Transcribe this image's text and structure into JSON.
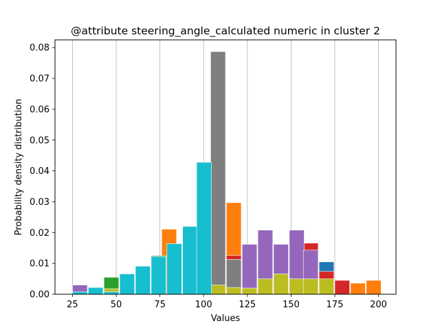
{
  "chart_data": {
    "type": "bar",
    "title": "@attribute steering_angle_calculated numeric in cluster  2",
    "xlabel": "Values",
    "ylabel": "Probability density distribution",
    "xlim": [
      15,
      210
    ],
    "ylim": [
      0,
      0.0825
    ],
    "xticks": [
      25,
      50,
      75,
      100,
      125,
      150,
      175,
      200
    ],
    "xtick_labels": [
      "25",
      "50",
      "75",
      "100",
      "125",
      "150",
      "175",
      "200"
    ],
    "yticks": [
      0,
      0.01,
      0.02,
      0.03,
      0.04,
      0.05,
      0.06,
      0.07,
      0.08
    ],
    "ytick_labels": [
      "0.00",
      "0.01",
      "0.02",
      "0.03",
      "0.04",
      "0.05",
      "0.06",
      "0.07",
      "0.08"
    ],
    "grid": "vertical",
    "colors": {
      "blue": "#1f77b4",
      "orange": "#ff7f0e",
      "green": "#2ca02c",
      "red": "#d62728",
      "purple": "#9467bd",
      "gray": "#7f7f7f",
      "olive": "#bcbd22",
      "cyan": "#17becf"
    },
    "series": [
      {
        "color": "#1f77b4",
        "bars": [
          [
            25,
            33.5,
            0.0012
          ],
          [
            166,
            174.5,
            0.0105
          ]
        ]
      },
      {
        "color": "#ff7f0e",
        "bars": [
          [
            76,
            84.5,
            0.0211
          ],
          [
            113,
            121.5,
            0.0297
          ],
          [
            184,
            192.5,
            0.0036
          ],
          [
            193,
            201.5,
            0.0045
          ]
        ]
      },
      {
        "color": "#2ca02c",
        "bars": [
          [
            43,
            51.5,
            0.0055
          ],
          [
            70,
            78.5,
            0.0125
          ]
        ]
      },
      {
        "color": "#d62728",
        "bars": [
          [
            113,
            121.5,
            0.0126
          ],
          [
            157,
            165.5,
            0.0166
          ],
          [
            166,
            174.5,
            0.0074
          ],
          [
            175,
            183.5,
            0.0045
          ]
        ]
      },
      {
        "color": "#9467bd",
        "bars": [
          [
            25,
            33.5,
            0.003
          ],
          [
            113,
            121.5,
            0.0113
          ],
          [
            122,
            130.5,
            0.0162
          ],
          [
            131,
            139.5,
            0.0208
          ],
          [
            140,
            148.5,
            0.0162
          ],
          [
            149,
            157.5,
            0.0208
          ],
          [
            157,
            165.5,
            0.0143
          ]
        ]
      },
      {
        "color": "#7f7f7f",
        "bars": [
          [
            104,
            112.5,
            0.0787
          ],
          [
            113,
            121.5,
            0.0113
          ]
        ]
      },
      {
        "color": "#bcbd22",
        "bars": [
          [
            43,
            51.5,
            0.0018
          ],
          [
            104,
            112.5,
            0.003
          ],
          [
            113,
            121.5,
            0.0022
          ],
          [
            122,
            130.5,
            0.002
          ],
          [
            131,
            139.5,
            0.005
          ],
          [
            140,
            148.5,
            0.0066
          ],
          [
            149,
            157.5,
            0.005
          ],
          [
            157,
            165.5,
            0.005
          ],
          [
            166,
            174.5,
            0.005
          ]
        ]
      },
      {
        "color": "#17becf",
        "bars": [
          [
            25,
            33.5,
            0.0008
          ],
          [
            34,
            42.5,
            0.0022
          ],
          [
            43,
            51.5,
            0.0008
          ],
          [
            52,
            60.5,
            0.0066
          ],
          [
            61,
            69.5,
            0.0091
          ],
          [
            70,
            78.5,
            0.0122
          ],
          [
            79,
            87.5,
            0.0164
          ],
          [
            88,
            96.5,
            0.022
          ],
          [
            96,
            104.5,
            0.0428
          ]
        ]
      }
    ]
  }
}
